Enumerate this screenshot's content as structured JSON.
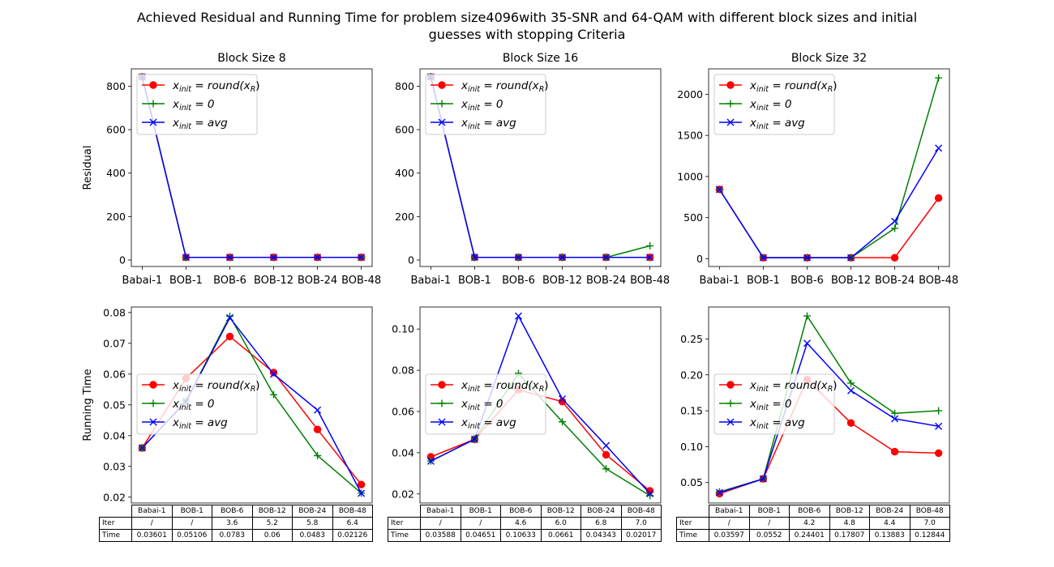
{
  "figure": {
    "title_line1": "Achieved Residual and Running Time for problem size4096with  35-SNR and 64-QAM with different block sizes and initial",
    "title_line2": "guesses with stopping Criteria"
  },
  "legend": [
    {
      "prefix": "x",
      "sub": "init",
      "expr": " = round(x",
      "sub2": "R",
      "tail": ")"
    },
    {
      "prefix": "x",
      "sub": "init",
      "expr": " = 0",
      "sub2": "",
      "tail": ""
    },
    {
      "prefix": "x",
      "sub": "init",
      "expr": " = avg",
      "sub2": "",
      "tail": ""
    }
  ],
  "colors": {
    "round": "#ff0000",
    "zero": "#008000",
    "avg": "#0000ff"
  },
  "chart_data": [
    {
      "type": "line",
      "title": "Block Size 8",
      "ylabel": "Residual",
      "categories": [
        "Babai-1",
        "BOB-1",
        "BOB-6",
        "BOB-12",
        "BOB-24",
        "BOB-48"
      ],
      "ylim": [
        -30,
        880
      ],
      "yticks": [
        0,
        200,
        400,
        600,
        800
      ],
      "ytick_labels": [
        "0",
        "200",
        "400",
        "600",
        "800"
      ],
      "show_xticks": true,
      "legend_position": "upper-left",
      "series": [
        {
          "name": "round",
          "marker": "circle",
          "values": [
            843,
            12,
            12,
            12,
            12,
            12
          ]
        },
        {
          "name": "zero",
          "marker": "plus",
          "values": [
            843,
            12,
            12,
            12,
            12,
            12
          ]
        },
        {
          "name": "avg",
          "marker": "x",
          "values": [
            843,
            12,
            12,
            12,
            12,
            12
          ]
        }
      ]
    },
    {
      "type": "line",
      "title": "Block Size 16",
      "ylabel": "",
      "categories": [
        "Babai-1",
        "BOB-1",
        "BOB-6",
        "BOB-12",
        "BOB-24",
        "BOB-48"
      ],
      "ylim": [
        -30,
        880
      ],
      "yticks": [
        0,
        200,
        400,
        600,
        800
      ],
      "ytick_labels": [
        "0",
        "200",
        "400",
        "600",
        "800"
      ],
      "show_xticks": true,
      "legend_position": "upper-left",
      "series": [
        {
          "name": "round",
          "marker": "circle",
          "values": [
            843,
            12,
            12,
            12,
            12,
            12
          ]
        },
        {
          "name": "zero",
          "marker": "plus",
          "values": [
            843,
            12,
            12,
            12,
            12,
            65
          ]
        },
        {
          "name": "avg",
          "marker": "x",
          "values": [
            843,
            12,
            12,
            12,
            12,
            12
          ]
        }
      ]
    },
    {
      "type": "line",
      "title": "Block Size 32",
      "ylabel": "",
      "categories": [
        "Babai-1",
        "BOB-1",
        "BOB-6",
        "BOB-12",
        "BOB-24",
        "BOB-48"
      ],
      "ylim": [
        -95,
        2310
      ],
      "yticks": [
        0,
        500,
        1000,
        1500,
        2000
      ],
      "ytick_labels": [
        "0",
        "500",
        "1000",
        "1500",
        "2000"
      ],
      "show_xticks": true,
      "legend_position": "upper-left",
      "series": [
        {
          "name": "round",
          "marker": "circle",
          "values": [
            843,
            12,
            12,
            12,
            12,
            738
          ]
        },
        {
          "name": "zero",
          "marker": "plus",
          "values": [
            843,
            12,
            12,
            12,
            370,
            2200
          ]
        },
        {
          "name": "avg",
          "marker": "x",
          "values": [
            843,
            12,
            12,
            12,
            455,
            1345
          ]
        }
      ]
    },
    {
      "type": "line",
      "title": "",
      "ylabel": "Running Time",
      "categories": [
        "Babai-1",
        "BOB-1",
        "BOB-6",
        "BOB-12",
        "BOB-24",
        "BOB-48"
      ],
      "ylim": [
        0.0181,
        0.0818
      ],
      "yticks": [
        0.02,
        0.03,
        0.04,
        0.05,
        0.06,
        0.07,
        0.08
      ],
      "ytick_labels": [
        "0.02",
        "0.03",
        "0.04",
        "0.05",
        "0.06",
        "0.07",
        "0.08"
      ],
      "show_xticks": false,
      "legend_position": "center-left",
      "series": [
        {
          "name": "round",
          "marker": "circle",
          "values": [
            0.036,
            0.0586,
            0.0722,
            0.0605,
            0.042,
            0.0241
          ]
        },
        {
          "name": "zero",
          "marker": "plus",
          "values": [
            0.036,
            0.0512,
            0.0788,
            0.0533,
            0.0335,
            0.0213
          ]
        },
        {
          "name": "avg",
          "marker": "x",
          "values": [
            0.03601,
            0.05106,
            0.0783,
            0.06,
            0.0483,
            0.02126
          ]
        }
      ]
    },
    {
      "type": "line",
      "title": "",
      "ylabel": "",
      "categories": [
        "Babai-1",
        "BOB-1",
        "BOB-6",
        "BOB-12",
        "BOB-24",
        "BOB-48"
      ],
      "ylim": [
        0.0156,
        0.1107
      ],
      "yticks": [
        0.02,
        0.04,
        0.06,
        0.08,
        0.1
      ],
      "ytick_labels": [
        "0.02",
        "0.04",
        "0.06",
        "0.08",
        "0.10"
      ],
      "show_xticks": false,
      "legend_position": "center-left",
      "series": [
        {
          "name": "round",
          "marker": "circle",
          "values": [
            0.038,
            0.0465,
            0.0705,
            0.0648,
            0.039,
            0.0215
          ]
        },
        {
          "name": "zero",
          "marker": "plus",
          "values": [
            0.036,
            0.0465,
            0.0785,
            0.055,
            0.0322,
            0.0192
          ]
        },
        {
          "name": "avg",
          "marker": "x",
          "values": [
            0.03588,
            0.04651,
            0.10633,
            0.0661,
            0.04343,
            0.02017
          ]
        }
      ]
    },
    {
      "type": "line",
      "title": "",
      "ylabel": "",
      "categories": [
        "Babai-1",
        "BOB-1",
        "BOB-6",
        "BOB-12",
        "BOB-24",
        "BOB-48"
      ],
      "ylim": [
        0.0215,
        0.2945
      ],
      "yticks": [
        0.05,
        0.1,
        0.15,
        0.2,
        0.25
      ],
      "ytick_labels": [
        "0.05",
        "0.10",
        "0.15",
        "0.20",
        "0.25"
      ],
      "show_xticks": false,
      "legend_position": "center-left",
      "series": [
        {
          "name": "round",
          "marker": "circle",
          "values": [
            0.0345,
            0.0552,
            0.1935,
            0.133,
            0.093,
            0.091
          ]
        },
        {
          "name": "zero",
          "marker": "plus",
          "values": [
            0.037,
            0.0552,
            0.282,
            0.1885,
            0.1465,
            0.15
          ]
        },
        {
          "name": "avg",
          "marker": "x",
          "values": [
            0.03597,
            0.0552,
            0.24401,
            0.17807,
            0.13883,
            0.12844
          ]
        }
      ]
    }
  ],
  "tables": [
    {
      "header": [
        "Babai-1",
        "BOB-1",
        "BOB-6",
        "BOB-12",
        "BOB-24",
        "BOB-48"
      ],
      "rows": [
        {
          "label": "Iter",
          "cells": [
            "/",
            "/",
            "3.6",
            "5.2",
            "5.8",
            "6.4"
          ]
        },
        {
          "label": "Time",
          "cells": [
            "0.03601",
            "0.05106",
            "0.0783",
            "0.06",
            "0.0483",
            "0.02126"
          ]
        }
      ]
    },
    {
      "header": [
        "Babai-1",
        "BOB-1",
        "BOB-6",
        "BOB-12",
        "BOB-24",
        "BOB-48"
      ],
      "rows": [
        {
          "label": "Iter",
          "cells": [
            "/",
            "/",
            "4.6",
            "6.0",
            "6.8",
            "7.0"
          ]
        },
        {
          "label": "Time",
          "cells": [
            "0.03588",
            "0.04651",
            "0.10633",
            "0.0661",
            "0.04343",
            "0.02017"
          ]
        }
      ]
    },
    {
      "header": [
        "Babai-1",
        "BOB-1",
        "BOB-6",
        "BOB-12",
        "BOB-24",
        "BOB-48"
      ],
      "rows": [
        {
          "label": "Iter",
          "cells": [
            "/",
            "/",
            "4.2",
            "4.8",
            "4.4",
            "7.0"
          ]
        },
        {
          "label": "Time",
          "cells": [
            "0.03597",
            "0.0552",
            "0.24401",
            "0.17807",
            "0.13883",
            "0.12844"
          ]
        }
      ]
    }
  ]
}
